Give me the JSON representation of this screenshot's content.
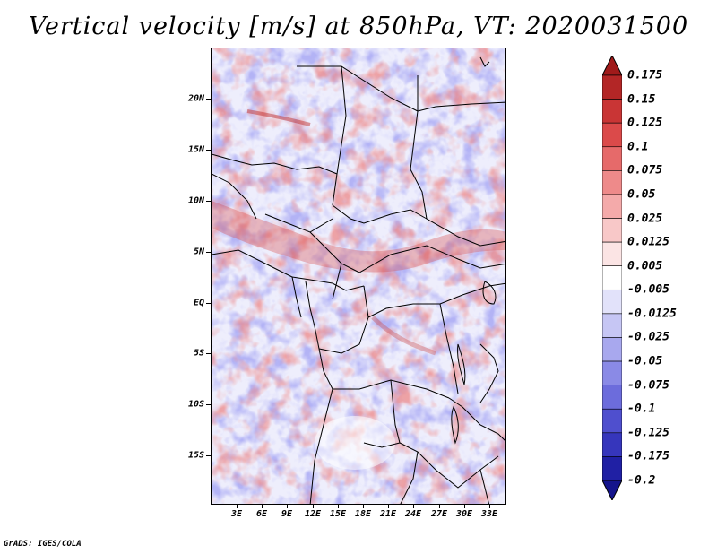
{
  "title": "Vertical velocity [m/s] at 850hPa, VT: 2020031500",
  "footer": "GrADS: IGES/COLA",
  "lat_labels": [
    "20N",
    "15N",
    "10N",
    "5N",
    "EQ",
    "5S",
    "10S",
    "15S"
  ],
  "lon_labels": [
    "3E",
    "6E",
    "9E",
    "12E",
    "15E",
    "18E",
    "21E",
    "24E",
    "27E",
    "30E",
    "33E"
  ],
  "colorbar": {
    "labels": [
      "0.175",
      "0.15",
      "0.125",
      "0.1",
      "0.075",
      "0.05",
      "0.025",
      "0.0125",
      "0.005",
      "-0.005",
      "-0.0125",
      "-0.025",
      "-0.05",
      "-0.075",
      "-0.1",
      "-0.125",
      "-0.175",
      "-0.2"
    ],
    "colors": [
      "#a01a1a",
      "#b32626",
      "#c93535",
      "#db4a4a",
      "#e66a6a",
      "#ee8a8a",
      "#f4aaaa",
      "#f8c8c8",
      "#fbe4e4",
      "#ffffff",
      "#e2e2fa",
      "#c6c6f4",
      "#a8a8ee",
      "#8a8ae6",
      "#6c6cdc",
      "#4f4fce",
      "#3636bc",
      "#2020a4",
      "#14148c"
    ]
  }
}
